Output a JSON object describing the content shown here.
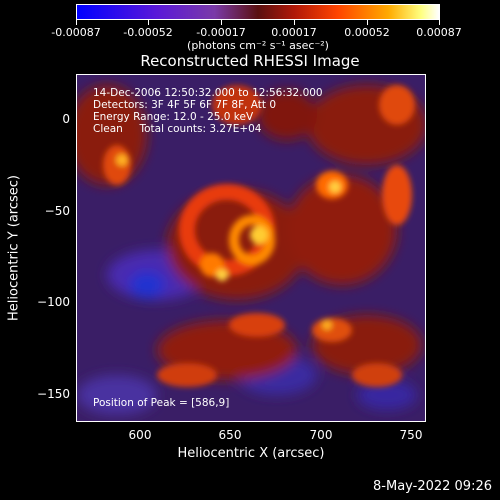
{
  "colorbar": {
    "ticks": [
      "-0.00087",
      "-0.00052",
      "-0.00017",
      "0.00017",
      "0.00052",
      "0.00087"
    ],
    "units": "(photons cm⁻² s⁻¹ asec⁻²)"
  },
  "title": "Reconstructed RHESSI Image",
  "info": {
    "time": "14-Dec-2006 12:50:32.000 to 12:56:32.000",
    "detectors": "Detectors: 3F 4F 5F 6F 7F 8F, Att 0",
    "energy": "Energy Range: 12.0 - 25.0 keV",
    "method": "Clean     Total counts: 3.27E+04"
  },
  "peak": "Position of Peak = [586,9]",
  "axes": {
    "xlabel": "Heliocentric X (arcsec)",
    "ylabel": "Heliocentric Y (arcsec)",
    "xticks": [
      "600",
      "650",
      "700",
      "750"
    ],
    "yticks": [
      "0",
      "−50",
      "−100",
      "−150"
    ]
  },
  "timestamp": "8-May-2022 09:26"
}
